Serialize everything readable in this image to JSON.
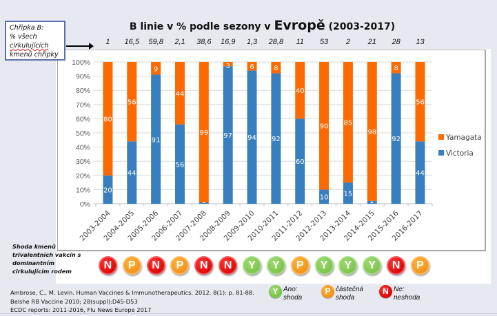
{
  "callout": {
    "line1": "Chřipka B:",
    "line2": "% všech",
    "line3": "cirkulujících",
    "line4": "kmenů chřipky"
  },
  "title": {
    "prefix": "B linie v % podle sezony v ",
    "region": "Evropě",
    "years": " (2003-2017)"
  },
  "circulating_percent": [
    "1",
    "16,5",
    "59,8",
    "2,1",
    "38,6",
    "16,9",
    "1,3",
    "28,8",
    "11",
    "53",
    "2",
    "21",
    "28",
    "13"
  ],
  "chart_data": {
    "type": "bar",
    "stacked": true,
    "title": "B linie v % podle sezony v Evropě (2003-2017)",
    "xlabel": "",
    "ylabel": "",
    "categories": [
      "2003-2004",
      "2004-2005",
      "2005-2006",
      "2006-2007",
      "2007-2008",
      "2008-2009",
      "2009-2010",
      "2010-2011",
      "2011-2012",
      "2012-2013",
      "2013-2014",
      "2014-2015",
      "2015-2016",
      "2016-2017"
    ],
    "series": [
      {
        "name": "Victoria",
        "color": "#3a7fbd",
        "values": [
          20,
          44,
          91,
          56,
          1,
          97,
          94,
          92,
          60,
          10,
          15,
          2,
          92,
          44
        ]
      },
      {
        "name": "Yamagata",
        "color": "#ff6a00",
        "values": [
          80,
          56,
          9,
          44,
          99,
          3,
          6,
          8,
          40,
          90,
          85,
          98,
          8,
          56
        ]
      }
    ],
    "ylim": [
      0,
      100
    ],
    "yticks": [
      "0%",
      "10%",
      "20%",
      "30%",
      "40%",
      "50%",
      "60%",
      "70%",
      "80%",
      "90%",
      "100%"
    ],
    "grid": true,
    "legend": "right",
    "legend_entries": [
      "Yamagata",
      "Victoria"
    ]
  },
  "match_note": "Shoda kmenů trivalentních vakcín s dominantním cirkulujícím rodem",
  "match_badges": [
    "N",
    "P",
    "N",
    "P",
    "N",
    "N",
    "Y",
    "Y",
    "P",
    "Y",
    "Y",
    "Y",
    "N",
    "P"
  ],
  "colors": {
    "N": "#e00000",
    "P": "#f5961a",
    "Y": "#80c552"
  },
  "references": [
    "Ambrose, C., M. Levin. Human Vaccines & Immunotherapeutics, 2012. 8(1): p. 81-88.",
    "Belshe RB Vaccine 2010; 28(suppl):D45-D53",
    "ECDC reports: 2011-2016, Flu News Europe 2017"
  ],
  "badge_legend": [
    {
      "code": "Y",
      "line1": "Ano:",
      "line2": "shoda"
    },
    {
      "code": "P",
      "line1": "částečná",
      "line2": "shoda"
    },
    {
      "code": "N",
      "line1": "Ne:",
      "line2": "neshoda"
    }
  ]
}
